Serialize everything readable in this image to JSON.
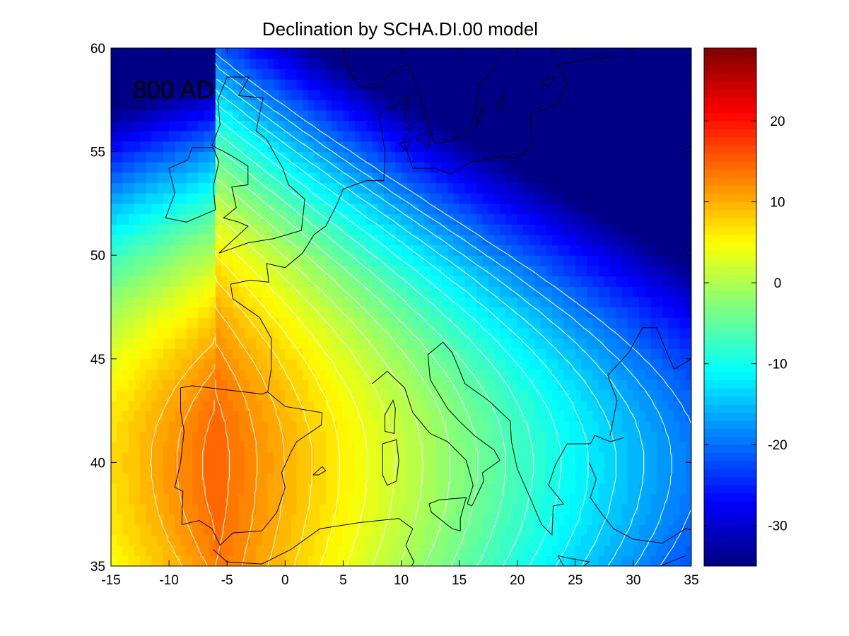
{
  "figure": {
    "title": "Declination by SCHA.DI.00 model",
    "annotation": "800 AD"
  },
  "chart_data": {
    "type": "heatmap",
    "title": "Declination by SCHA.DI.00 model",
    "xlabel": "",
    "ylabel": "",
    "xlim": [
      -15,
      35
    ],
    "ylim": [
      35,
      60
    ],
    "x_ticks": [
      -15,
      -10,
      -5,
      0,
      5,
      10,
      15,
      20,
      25,
      30,
      35
    ],
    "y_ticks": [
      35,
      40,
      45,
      50,
      55,
      60
    ],
    "x_tick_labels": [
      "-15",
      "-10",
      "-5",
      "0",
      "5",
      "10",
      "15",
      "20",
      "25",
      "30",
      "35"
    ],
    "y_tick_labels": [
      "35",
      "40",
      "45",
      "50",
      "55",
      "60"
    ],
    "colorbar": {
      "clim": [
        -35,
        29
      ],
      "ticks": [
        -30,
        -20,
        -10,
        0,
        10,
        20
      ],
      "tick_labels": [
        "-30",
        "-20",
        "-10",
        "0",
        "10",
        "20"
      ],
      "colormap": "jet",
      "levels": 64
    },
    "field_model": {
      "description_values_only": true,
      "center_lon": -6,
      "center_lat": 40,
      "max_value": 15,
      "lon_scale": 0.84,
      "lat_scale": 0.16,
      "lat_curve": 0.0045
    },
    "contour_interval": 2,
    "grid": false,
    "coastlines": true
  },
  "colors": {
    "axis": "#000000",
    "contour": "#ffffff",
    "coastline": "#000000",
    "background": "#ffffff"
  }
}
